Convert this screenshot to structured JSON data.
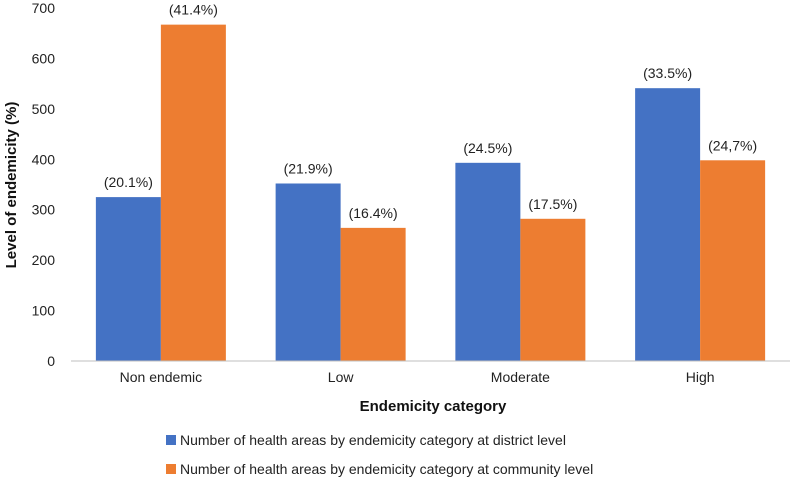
{
  "chart_data": {
    "type": "bar",
    "title": "",
    "xlabel": "Endemicity category",
    "ylabel": "Level of endemicity (%)",
    "ylim": [
      0,
      700
    ],
    "yticks": [
      0,
      100,
      200,
      300,
      400,
      500,
      600,
      700
    ],
    "grid": false,
    "legend_position": "bottom",
    "categories": [
      "Non endemic",
      "Low",
      "Moderate",
      "High"
    ],
    "series": [
      {
        "name": "Number of health areas by endemicity category at district level",
        "color": "#4472c4",
        "values": [
          325,
          352,
          393,
          541
        ],
        "labels": [
          "(20.1%)",
          "(21.9%)",
          "(24.5%)",
          "(33.5%)"
        ]
      },
      {
        "name": "Number of health areas by endemicity category at community level",
        "color": "#ed7d31",
        "values": [
          667,
          264,
          282,
          398
        ],
        "labels": [
          "(41.4%)",
          "(16.4%)",
          "(17.5%)",
          "(24,7%)"
        ]
      }
    ]
  }
}
